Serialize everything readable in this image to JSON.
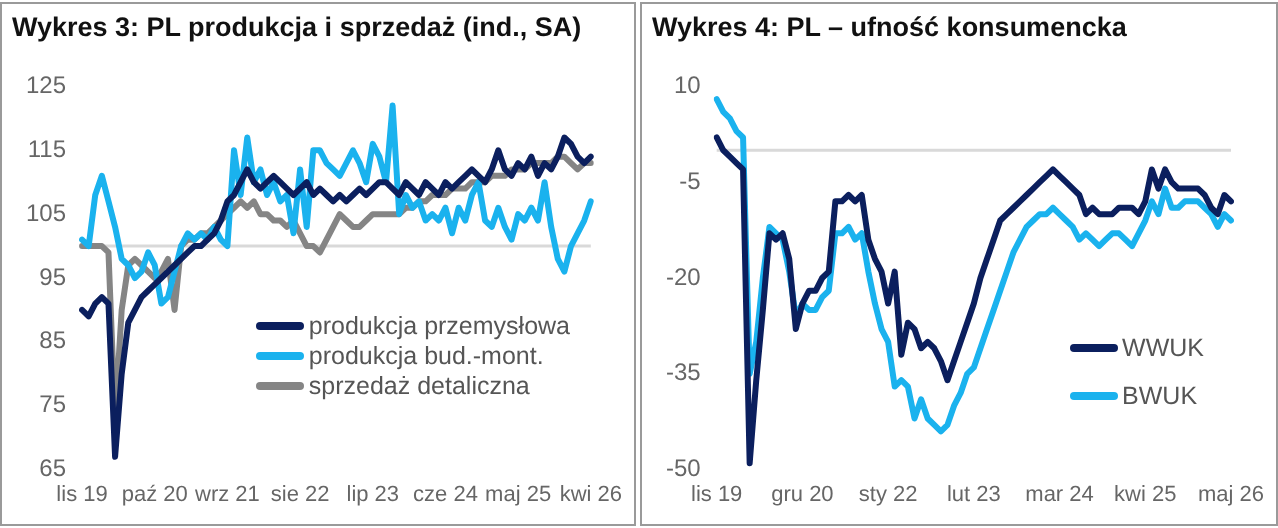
{
  "chart_data": [
    {
      "type": "line",
      "title": "Wykres 3: PL produkcja i sprzedaż (ind., SA)",
      "legend": "bottom right",
      "grid": false,
      "marker": "none",
      "categories": [
        "lis 19",
        null,
        null,
        null,
        null,
        null,
        null,
        null,
        null,
        null,
        null,
        "paź 20",
        null,
        null,
        null,
        null,
        null,
        null,
        null,
        null,
        null,
        null,
        "wrz 21",
        null,
        null,
        null,
        null,
        null,
        null,
        null,
        null,
        null,
        null,
        "sie 22",
        null,
        null,
        null,
        null,
        null,
        null,
        null,
        null,
        null,
        null,
        "lip 23",
        null,
        null,
        null,
        null,
        null,
        null,
        null,
        null,
        null,
        null,
        "cze 24",
        null,
        null,
        null,
        null,
        null,
        null,
        null,
        null,
        null,
        null,
        "maj 25",
        null,
        null,
        null,
        null,
        null,
        null,
        null,
        null,
        null,
        null,
        "kwi 26"
      ],
      "ylim": [
        65,
        125
      ],
      "yticks": [
        65,
        75,
        85,
        95,
        105,
        115,
        125
      ],
      "ref_lines": [
        {
          "axis": "y",
          "value": 100,
          "color": "#d9d9d9"
        }
      ],
      "series": [
        {
          "name": "produkcja przemysłowa",
          "color": "#0b1f5e",
          "values": [
            90,
            89,
            91,
            92,
            91,
            67,
            80,
            88,
            90,
            92,
            93,
            94,
            95,
            96,
            97,
            98,
            99,
            100,
            100,
            101,
            102,
            104,
            107,
            108,
            110,
            112,
            110,
            109,
            110,
            111,
            110,
            109,
            108,
            109,
            110,
            108,
            109,
            108,
            107,
            108,
            107,
            108,
            109,
            108,
            109,
            110,
            110,
            109,
            108,
            110,
            109,
            108,
            110,
            109,
            108,
            110,
            109,
            110,
            111,
            112,
            111,
            110,
            112,
            115,
            112,
            111,
            113,
            112,
            114,
            111,
            113,
            112,
            114,
            117,
            116,
            114,
            113,
            114
          ]
        },
        {
          "name": "produkcja bud.-mont.",
          "color": "#1ab2ee",
          "values": [
            101,
            100,
            108,
            111,
            107,
            103,
            98,
            97,
            95,
            96,
            99,
            97,
            91,
            92,
            96,
            100,
            102,
            101,
            102,
            101,
            103,
            101,
            100,
            115,
            108,
            117,
            110,
            112,
            108,
            110,
            107,
            108,
            102,
            112,
            103,
            115,
            115,
            113,
            112,
            111,
            113,
            115,
            113,
            110,
            116,
            114,
            110,
            122,
            105,
            108,
            106,
            107,
            104,
            105,
            104,
            106,
            102,
            106,
            104,
            108,
            110,
            104,
            103,
            106,
            103,
            101,
            105,
            104,
            106,
            104,
            110,
            103,
            98,
            96,
            100,
            102,
            104,
            107
          ]
        },
        {
          "name": "sprzedaż detaliczna",
          "color": "#858585",
          "values": [
            100,
            100,
            100,
            100,
            99,
            73,
            90,
            97,
            98,
            97,
            96,
            95,
            96,
            98,
            90,
            100,
            101,
            101,
            102,
            102,
            103,
            104,
            105,
            106,
            107,
            106,
            107,
            105,
            105,
            104,
            104,
            103,
            104,
            102,
            100,
            100,
            99,
            101,
            103,
            105,
            104,
            103,
            103,
            104,
            105,
            105,
            105,
            105,
            105,
            106,
            106,
            107,
            107,
            108,
            108,
            108,
            109,
            109,
            109,
            110,
            110,
            110,
            111,
            111,
            111,
            112,
            112,
            112,
            113,
            113,
            113,
            113,
            114,
            114,
            113,
            112,
            113,
            113
          ]
        }
      ]
    },
    {
      "type": "line",
      "title": "Wykres 4: PL – ufność konsumencka",
      "legend": "right",
      "grid": false,
      "marker": "none",
      "categories": [
        "lis 19",
        null,
        null,
        null,
        null,
        null,
        null,
        null,
        null,
        null,
        null,
        null,
        null,
        "gru 20",
        null,
        null,
        null,
        null,
        null,
        null,
        null,
        null,
        null,
        null,
        null,
        null,
        "sty 22",
        null,
        null,
        null,
        null,
        null,
        null,
        null,
        null,
        null,
        null,
        null,
        null,
        "lut 23",
        null,
        null,
        null,
        null,
        null,
        null,
        null,
        null,
        null,
        null,
        null,
        null,
        "mar 24",
        null,
        null,
        null,
        null,
        null,
        null,
        null,
        null,
        null,
        null,
        null,
        null,
        "kwi 25",
        null,
        null,
        null,
        null,
        null,
        null,
        null,
        null,
        null,
        null,
        null,
        null,
        "maj 26"
      ],
      "ylim": [
        -50,
        10
      ],
      "yticks": [
        -50,
        -35,
        -20,
        -5,
        10
      ],
      "ref_lines": [
        {
          "axis": "y",
          "value": 0,
          "color": "#d9d9d9"
        }
      ],
      "series": [
        {
          "name": "WWUK",
          "color": "#0b1f5e",
          "values": [
            2,
            0,
            -1,
            -2,
            -3,
            -49,
            -36,
            -25,
            -13,
            -14,
            -13,
            -17,
            -28,
            -24,
            -22,
            -22,
            -20,
            -19,
            -8,
            -8,
            -7,
            -8,
            -7,
            -14,
            -17,
            -19,
            -24,
            -19,
            -32,
            -27,
            -28,
            -31,
            -30,
            -31,
            -33,
            -36,
            -33,
            -30,
            -27,
            -24,
            -20,
            -17,
            -14,
            -11,
            -10,
            -9,
            -8,
            -7,
            -6,
            -5,
            -4,
            -3,
            -4,
            -5,
            -6,
            -7,
            -10,
            -9,
            -10,
            -10,
            -10,
            -9,
            -9,
            -9,
            -10,
            -8,
            -3,
            -6,
            -3,
            -5,
            -6,
            -6,
            -6,
            -6,
            -7,
            -9,
            -10,
            -7,
            -8
          ]
        },
        {
          "name": "BWUK",
          "color": "#1ab2ee",
          "values": [
            8,
            6,
            5,
            3,
            2,
            -35,
            -30,
            -20,
            -12,
            -13,
            -14,
            -19,
            -26,
            -24,
            -25,
            -25,
            -23,
            -22,
            -13,
            -13,
            -12,
            -14,
            -13,
            -19,
            -24,
            -28,
            -30,
            -37,
            -36,
            -37,
            -42,
            -39,
            -42,
            -43,
            -44,
            -43,
            -40,
            -38,
            -35,
            -34,
            -31,
            -28,
            -25,
            -22,
            -19,
            -16,
            -14,
            -12,
            -11,
            -10,
            -10,
            -9,
            -10,
            -11,
            -12,
            -14,
            -13,
            -14,
            -15,
            -14,
            -13,
            -13,
            -14,
            -15,
            -13,
            -11,
            -8,
            -10,
            -6,
            -9,
            -9,
            -8,
            -8,
            -8,
            -9,
            -10,
            -12,
            -10,
            -11
          ]
        }
      ]
    }
  ]
}
